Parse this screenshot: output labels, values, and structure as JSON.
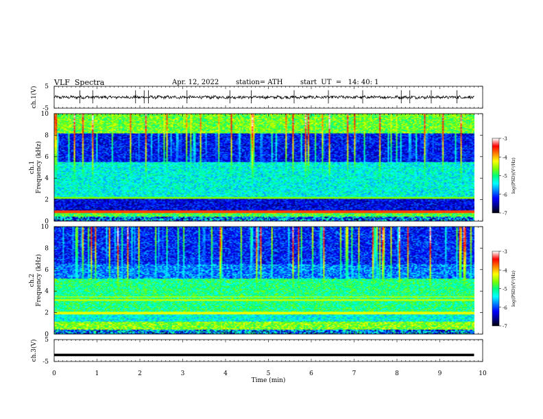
{
  "header": {
    "title": "VLF  Spectra",
    "date": "Apr. 12, 2022",
    "station": "station= ATH",
    "start": "start  UT  =   14: 40: 1"
  },
  "chart_data": [
    {
      "type": "line",
      "panel": "ch1-waveform",
      "ylabel": "ch.1(V)",
      "ylim": [
        -5,
        5
      ],
      "yticks": [
        "5",
        "-5"
      ],
      "xlim": [
        0,
        9.8
      ],
      "baseline": 0,
      "note_series": "noisy trace around 0 V with short spikes",
      "spikes_x": [
        0.6,
        0.9,
        1.9,
        2.1,
        2.2,
        3.1,
        4.1,
        4.6,
        5.6,
        6.4,
        7.2,
        8.1,
        8.3,
        8.8,
        9.4
      ]
    },
    {
      "type": "heatmap",
      "panel": "ch1-spectrogram",
      "ylabel": "ch.1\nFrequency  (kHz)",
      "ylim": [
        0,
        10
      ],
      "yticks": [
        "0",
        "2",
        "4",
        "6",
        "8",
        "10"
      ],
      "xlim": [
        0,
        9.8
      ],
      "colorbar": {
        "label": "log(PSD)(V²/Hz)",
        "ticks": [
          "-3",
          "-4",
          "-5",
          "-6",
          "-7"
        ],
        "range": [
          -7,
          -3
        ]
      }
    },
    {
      "type": "heatmap",
      "panel": "ch2-spectrogram",
      "ylabel": "ch.2\nFrequency  (kHz)",
      "ylim": [
        0,
        10
      ],
      "yticks": [
        "0",
        "2",
        "4",
        "6",
        "8",
        "10"
      ],
      "xlim": [
        0,
        9.8
      ],
      "colorbar": {
        "label": "log(PSD)(V²/Hz)",
        "ticks": [
          "-3",
          "-4",
          "-5",
          "-6",
          "-7"
        ],
        "range": [
          -7,
          -3
        ]
      }
    },
    {
      "type": "line",
      "panel": "ch3-waveform",
      "ylabel": "ch.3(V)",
      "ylim": [
        -5,
        5
      ],
      "yticks": [
        "5",
        "-5"
      ],
      "xlim": [
        0,
        9.8
      ],
      "baseline": -2
    }
  ],
  "xaxis": {
    "label": "Time  (min)",
    "ticks": [
      "0",
      "1",
      "2",
      "3",
      "4",
      "5",
      "6",
      "7",
      "8",
      "9",
      "10"
    ]
  },
  "colors": {
    "scale": [
      "#000000",
      "#00008b",
      "#0000ff",
      "#0080ff",
      "#00ffff",
      "#00ff80",
      "#80ff00",
      "#ffff00",
      "#ff8000",
      "#ff0000",
      "#ffffff"
    ]
  }
}
